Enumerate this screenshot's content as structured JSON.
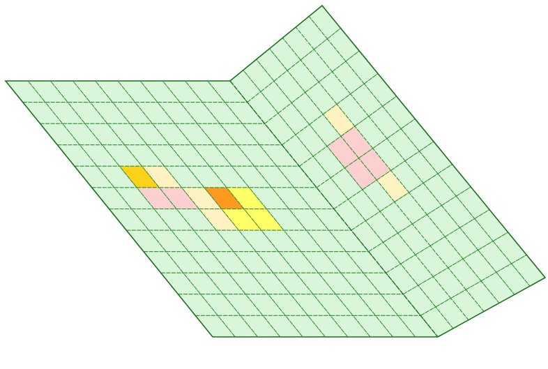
{
  "diagram": {
    "description_free": true,
    "colors": {
      "background": "#ffffff",
      "base_cell": "#d9f6da",
      "grid_line": "#2e8b2e",
      "grid_line_dark": "#1f6e1f",
      "highlight_cream": "#fff2c2",
      "highlight_pink": "#fdd0d0",
      "highlight_yellow": "#ffff66",
      "highlight_gold": "#ffd21a",
      "highlight_orange": "#ff9a1e"
    },
    "folded_surface": {
      "flat_panel": {
        "rows": 12,
        "cols": 10
      },
      "slope_panel": {
        "rows": 12,
        "cols": 7
      }
    },
    "highlights": [
      {
        "panel": "flat",
        "row": 4,
        "col": 2,
        "color": "highlight_gold"
      },
      {
        "panel": "flat",
        "row": 4,
        "col": 3,
        "color": "highlight_cream"
      },
      {
        "panel": "flat",
        "row": 5,
        "col": 2,
        "color": "highlight_pink"
      },
      {
        "panel": "flat",
        "row": 5,
        "col": 3,
        "color": "highlight_pink"
      },
      {
        "panel": "flat",
        "row": 5,
        "col": 4,
        "color": "highlight_cream"
      },
      {
        "panel": "flat",
        "row": 5,
        "col": 5,
        "color": "highlight_orange"
      },
      {
        "panel": "flat",
        "row": 5,
        "col": 6,
        "color": "highlight_yellow"
      },
      {
        "panel": "flat",
        "row": 6,
        "col": 4,
        "color": "highlight_cream"
      },
      {
        "panel": "flat",
        "row": 6,
        "col": 5,
        "color": "highlight_yellow"
      },
      {
        "panel": "flat",
        "row": 6,
        "col": 6,
        "color": "highlight_yellow"
      },
      {
        "panel": "slope",
        "row": 3,
        "col": 3,
        "color": "highlight_cream"
      },
      {
        "panel": "slope",
        "row": 4,
        "col": 2,
        "color": "highlight_pink"
      },
      {
        "panel": "slope",
        "row": 4,
        "col": 3,
        "color": "highlight_pink"
      },
      {
        "panel": "slope",
        "row": 5,
        "col": 2,
        "color": "highlight_pink"
      },
      {
        "panel": "slope",
        "row": 5,
        "col": 3,
        "color": "highlight_pink"
      },
      {
        "panel": "slope",
        "row": 6,
        "col": 3,
        "color": "highlight_cream"
      }
    ]
  }
}
